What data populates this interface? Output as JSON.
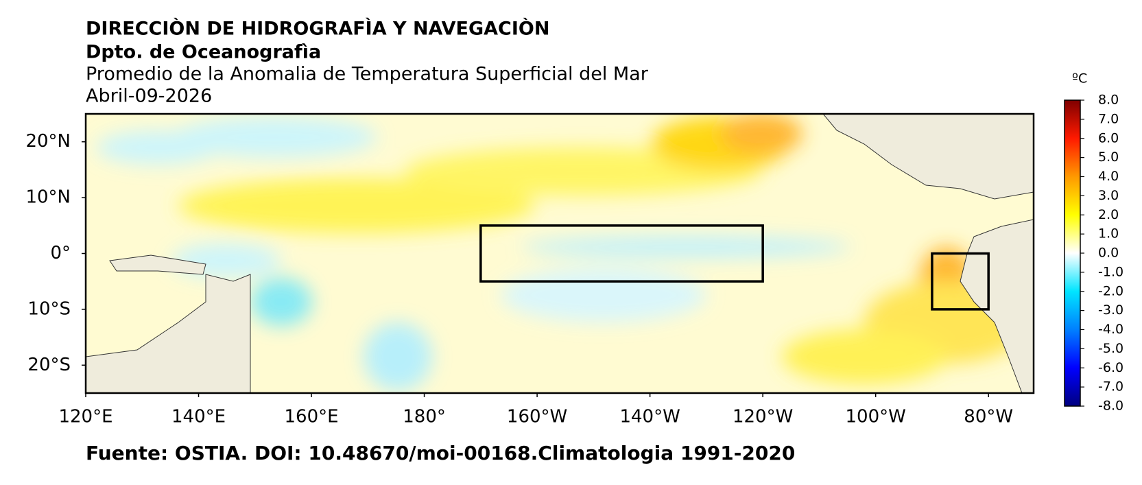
{
  "chart_data": {
    "type": "map",
    "title": "DIRECCIÒN DE HIDROGRAFÌA Y NAVEGACIÒN",
    "subtitle": "Dpto. de Oceanografìa",
    "description": "Promedio de la Anomalia de Temperatura Superficial del Mar",
    "date": "Abril-09-2026",
    "source": "Fuente: OSTIA. DOI: 10.48670/moi-00168.Climatologia 1991-2020",
    "xlim": [
      120,
      288
    ],
    "ylim": [
      -25,
      25
    ],
    "xticks": [
      {
        "value": 120,
        "label": "120°E"
      },
      {
        "value": 140,
        "label": "140°E"
      },
      {
        "value": 160,
        "label": "160°E"
      },
      {
        "value": 180,
        "label": "180°"
      },
      {
        "value": 200,
        "label": "160°W"
      },
      {
        "value": 220,
        "label": "140°W"
      },
      {
        "value": 240,
        "label": "120°W"
      },
      {
        "value": 260,
        "label": "100°W"
      },
      {
        "value": 280,
        "label": "80°W"
      }
    ],
    "yticks": [
      {
        "value": 20,
        "label": "20°N"
      },
      {
        "value": 10,
        "label": "10°N"
      },
      {
        "value": 0,
        "label": "0°"
      },
      {
        "value": -10,
        "label": "10°S"
      },
      {
        "value": -20,
        "label": "20°S"
      }
    ],
    "boxes": [
      {
        "lon": [
          190,
          240
        ],
        "lat": [
          -5,
          5
        ]
      },
      {
        "lon": [
          270,
          280
        ],
        "lat": [
          -10,
          0
        ]
      }
    ],
    "colorbar": {
      "label": "ºC",
      "lim": [
        -8,
        8
      ],
      "colors": [
        "#00007f",
        "#0000ff",
        "#0080ff",
        "#00e5ff",
        "#ffffff",
        "#ffff00",
        "#ff9900",
        "#ff1a00",
        "#7f0000"
      ],
      "ticks": [
        {
          "value": 8,
          "label": "8.0"
        },
        {
          "value": 7,
          "label": "7.0"
        },
        {
          "value": 6,
          "label": "6.0"
        },
        {
          "value": 5,
          "label": "5.0"
        },
        {
          "value": 4,
          "label": "4.0"
        },
        {
          "value": 3,
          "label": "3.0"
        },
        {
          "value": 2,
          "label": "2.0"
        },
        {
          "value": 1,
          "label": "1.0"
        },
        {
          "value": 0,
          "label": "0.0"
        },
        {
          "value": -1,
          "label": "-1.0"
        },
        {
          "value": -2,
          "label": "-2.0"
        },
        {
          "value": -3,
          "label": "-3.0"
        },
        {
          "value": -4,
          "label": "-4.0"
        },
        {
          "value": -5,
          "label": "-5.0"
        },
        {
          "value": -6,
          "label": "-6.0"
        },
        {
          "value": -7,
          "label": "-7.0"
        },
        {
          "value": -8,
          "label": "-8.0"
        }
      ]
    }
  }
}
